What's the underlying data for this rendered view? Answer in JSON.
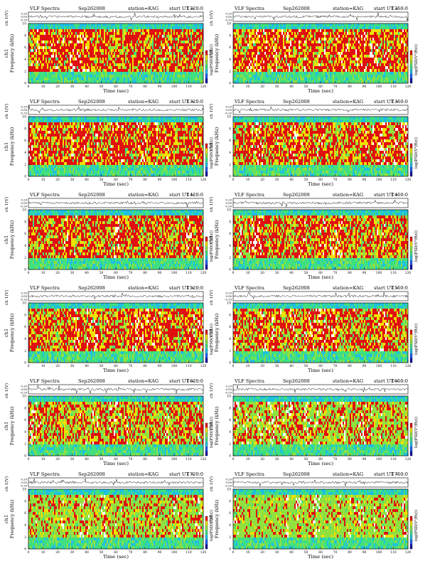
{
  "page": {
    "background": "#ffffff",
    "colormap": [
      "#ffffff",
      "#e01010",
      "#f0e000",
      "#90e040",
      "#40e080",
      "#20c0e0",
      "#2060f0",
      "#1010a0"
    ]
  },
  "common": {
    "heading": "VLF Spectra",
    "date": "Sep262008",
    "station": "station=KAG",
    "start_prefix": "start  UT  =",
    "waveform_label": "ch 1(V)",
    "waveform_ticks": [
      "0.20",
      "0.00",
      "-0.20"
    ],
    "spectrogram_label_1": "ch1",
    "spectrogram_label_2": "Frequency  (kHz)",
    "freq_ticks": [
      "0",
      "2",
      "4",
      "6",
      "8",
      "10"
    ],
    "xlabel": "Time  (sec)",
    "colorbar_label": "log(PSD(V²/Hz))",
    "colorbar_ticks": [
      "-",
      "-",
      "-"
    ]
  },
  "chart_data": [
    {
      "type": "heatmap",
      "start_ut": "1220:0",
      "x_ticks": [
        "0",
        "10",
        "20",
        "30",
        "40",
        "50",
        "60",
        "70",
        "80",
        "90",
        "100",
        "110",
        "120"
      ],
      "xlim": [
        0,
        120
      ],
      "ylim": [
        0,
        10
      ],
      "activity": 0.85,
      "seed": 11
    },
    {
      "type": "heatmap",
      "start_ut": "1250:0",
      "x_ticks": [
        "0",
        "10",
        "20",
        "30",
        "40",
        "50",
        "60",
        "70",
        "80",
        "90",
        "100",
        "110",
        "120"
      ],
      "xlim": [
        0,
        120
      ],
      "ylim": [
        0,
        10
      ],
      "activity": 0.85,
      "seed": 23
    },
    {
      "type": "heatmap",
      "start_ut": "1320:0",
      "x_ticks": [
        "0",
        "10",
        "20",
        "30",
        "40",
        "50",
        "60",
        "70",
        "80",
        "90",
        "100",
        "110",
        "120"
      ],
      "xlim": [
        0,
        120
      ],
      "ylim": [
        0,
        10
      ],
      "activity": 0.85,
      "seed": 37
    },
    {
      "type": "heatmap",
      "start_ut": "1350:0",
      "x_ticks": [
        "0",
        "10",
        "20",
        "30",
        "40",
        "50",
        "60",
        "70",
        "80",
        "90",
        "100",
        "110",
        "120"
      ],
      "xlim": [
        0,
        120
      ],
      "ylim": [
        0,
        10
      ],
      "activity": 0.8,
      "seed": 41
    },
    {
      "type": "heatmap",
      "start_ut": "1420:0",
      "x_ticks": [
        "0",
        "10",
        "20",
        "30",
        "40",
        "50",
        "60",
        "70",
        "80",
        "90",
        "100",
        "110",
        "120"
      ],
      "xlim": [
        0,
        120
      ],
      "ylim": [
        0,
        10
      ],
      "activity": 0.8,
      "seed": 53
    },
    {
      "type": "heatmap",
      "start_ut": "1450:0",
      "x_ticks": [
        "0",
        "10",
        "20",
        "30",
        "40",
        "50",
        "60",
        "70",
        "80",
        "90",
        "100",
        "110",
        "120"
      ],
      "xlim": [
        0,
        120
      ],
      "ylim": [
        0,
        10
      ],
      "activity": 0.75,
      "seed": 67
    },
    {
      "type": "heatmap",
      "start_ut": "1520:0",
      "x_ticks": [
        "0",
        "10",
        "20",
        "30",
        "40",
        "50",
        "60",
        "70",
        "80",
        "90",
        "100",
        "110",
        "120"
      ],
      "xlim": [
        0,
        120
      ],
      "ylim": [
        0,
        10
      ],
      "activity": 0.8,
      "seed": 71
    },
    {
      "type": "heatmap",
      "start_ut": "1550:0",
      "x_ticks": [
        "0",
        "10",
        "20",
        "30",
        "40",
        "50",
        "60",
        "70",
        "80",
        "90",
        "100",
        "110",
        "120"
      ],
      "xlim": [
        0,
        120
      ],
      "ylim": [
        0,
        10
      ],
      "activity": 0.75,
      "seed": 83
    },
    {
      "type": "heatmap",
      "start_ut": "1620:0",
      "x_ticks": [
        "0",
        "10",
        "20",
        "30",
        "40",
        "50",
        "60",
        "70",
        "80",
        "90",
        "100",
        "110",
        "120"
      ],
      "xlim": [
        0,
        120
      ],
      "ylim": [
        0,
        10
      ],
      "activity": 0.6,
      "seed": 97
    },
    {
      "type": "heatmap",
      "start_ut": "1650:0",
      "x_ticks": [
        "0",
        "10",
        "20",
        "30",
        "40",
        "50",
        "60",
        "70",
        "80",
        "90",
        "100",
        "110",
        "120"
      ],
      "xlim": [
        0,
        120
      ],
      "ylim": [
        0,
        10
      ],
      "activity": 0.45,
      "seed": 101
    },
    {
      "type": "heatmap",
      "start_ut": "1720:0",
      "x_ticks": [
        "0",
        "10",
        "20",
        "30",
        "40",
        "50",
        "60",
        "70",
        "80",
        "90",
        "100",
        "110",
        "120"
      ],
      "xlim": [
        0,
        120
      ],
      "ylim": [
        0,
        10
      ],
      "activity": 0.4,
      "seed": 113
    },
    {
      "type": "heatmap",
      "start_ut": "1750:0",
      "x_ticks": [
        "0",
        "10",
        "20",
        "30",
        "40",
        "50",
        "60",
        "70",
        "80",
        "90",
        "100",
        "110",
        "120"
      ],
      "xlim": [
        0,
        120
      ],
      "ylim": [
        0,
        10
      ],
      "activity": 0.3,
      "seed": 127
    }
  ]
}
